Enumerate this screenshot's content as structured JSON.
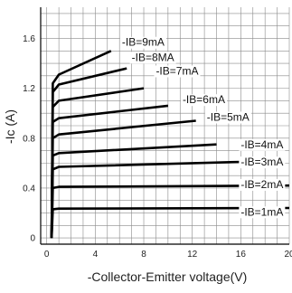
{
  "chart_data": {
    "type": "line",
    "title": "",
    "xlabel": "-Collector-Emitter voltage(V)",
    "ylabel": "-Ic (A)",
    "xlim": [
      -0.5,
      20
    ],
    "ylim": [
      -0.05,
      1.85
    ],
    "grid": true,
    "x_ticks": [
      0,
      4,
      8,
      12,
      16,
      20
    ],
    "y_ticks": [
      0,
      0.4,
      0.8,
      1.2,
      1.6
    ],
    "series": [
      {
        "name": "-IB=1mA",
        "points": [
          [
            0.4,
            0
          ],
          [
            0.5,
            0.23
          ],
          [
            1.0,
            0.235
          ],
          [
            20,
            0.24
          ]
        ],
        "label_at": [
          16,
          0.18
        ]
      },
      {
        "name": "-IB=2mA",
        "points": [
          [
            0.4,
            0
          ],
          [
            0.5,
            0.4
          ],
          [
            1.0,
            0.41
          ],
          [
            20,
            0.42
          ]
        ],
        "label_at": [
          16,
          0.4
        ]
      },
      {
        "name": "-IB=3mA",
        "points": [
          [
            0.4,
            0
          ],
          [
            0.5,
            0.55
          ],
          [
            1.0,
            0.57
          ],
          [
            16,
            0.61
          ]
        ],
        "label_at": [
          16,
          0.58
        ]
      },
      {
        "name": "-IB=4mA",
        "points": [
          [
            0.4,
            0
          ],
          [
            0.5,
            0.66
          ],
          [
            1.0,
            0.68
          ],
          [
            14,
            0.75
          ]
        ],
        "label_at": [
          16,
          0.72
        ]
      },
      {
        "name": "-IB=5mA",
        "points": [
          [
            0.4,
            0
          ],
          [
            0.5,
            0.8
          ],
          [
            1.0,
            0.83
          ],
          [
            12.3,
            0.94
          ]
        ],
        "label_at": [
          13.2,
          0.94
        ]
      },
      {
        "name": "-IB=6mA",
        "points": [
          [
            0.4,
            0
          ],
          [
            0.5,
            0.93
          ],
          [
            1.0,
            0.96
          ],
          [
            10,
            1.06
          ]
        ],
        "label_at": [
          11.2,
          1.08
        ]
      },
      {
        "name": "-IB=7mA",
        "points": [
          [
            0.4,
            0
          ],
          [
            0.5,
            1.05
          ],
          [
            1.0,
            1.1
          ],
          [
            8,
            1.2
          ]
        ],
        "label_at": [
          9.0,
          1.31
        ]
      },
      {
        "name": "-IB=8MA",
        "points": [
          [
            0.4,
            0
          ],
          [
            0.5,
            1.17
          ],
          [
            1.0,
            1.23
          ],
          [
            6.6,
            1.36
          ]
        ],
        "label_at": [
          7.0,
          1.42
        ]
      },
      {
        "name": "-IB=9mA",
        "points": [
          [
            0.4,
            0
          ],
          [
            0.5,
            1.24
          ],
          [
            1.0,
            1.31
          ],
          [
            5.3,
            1.5
          ]
        ],
        "label_at": [
          6.2,
          1.54
        ]
      }
    ]
  }
}
